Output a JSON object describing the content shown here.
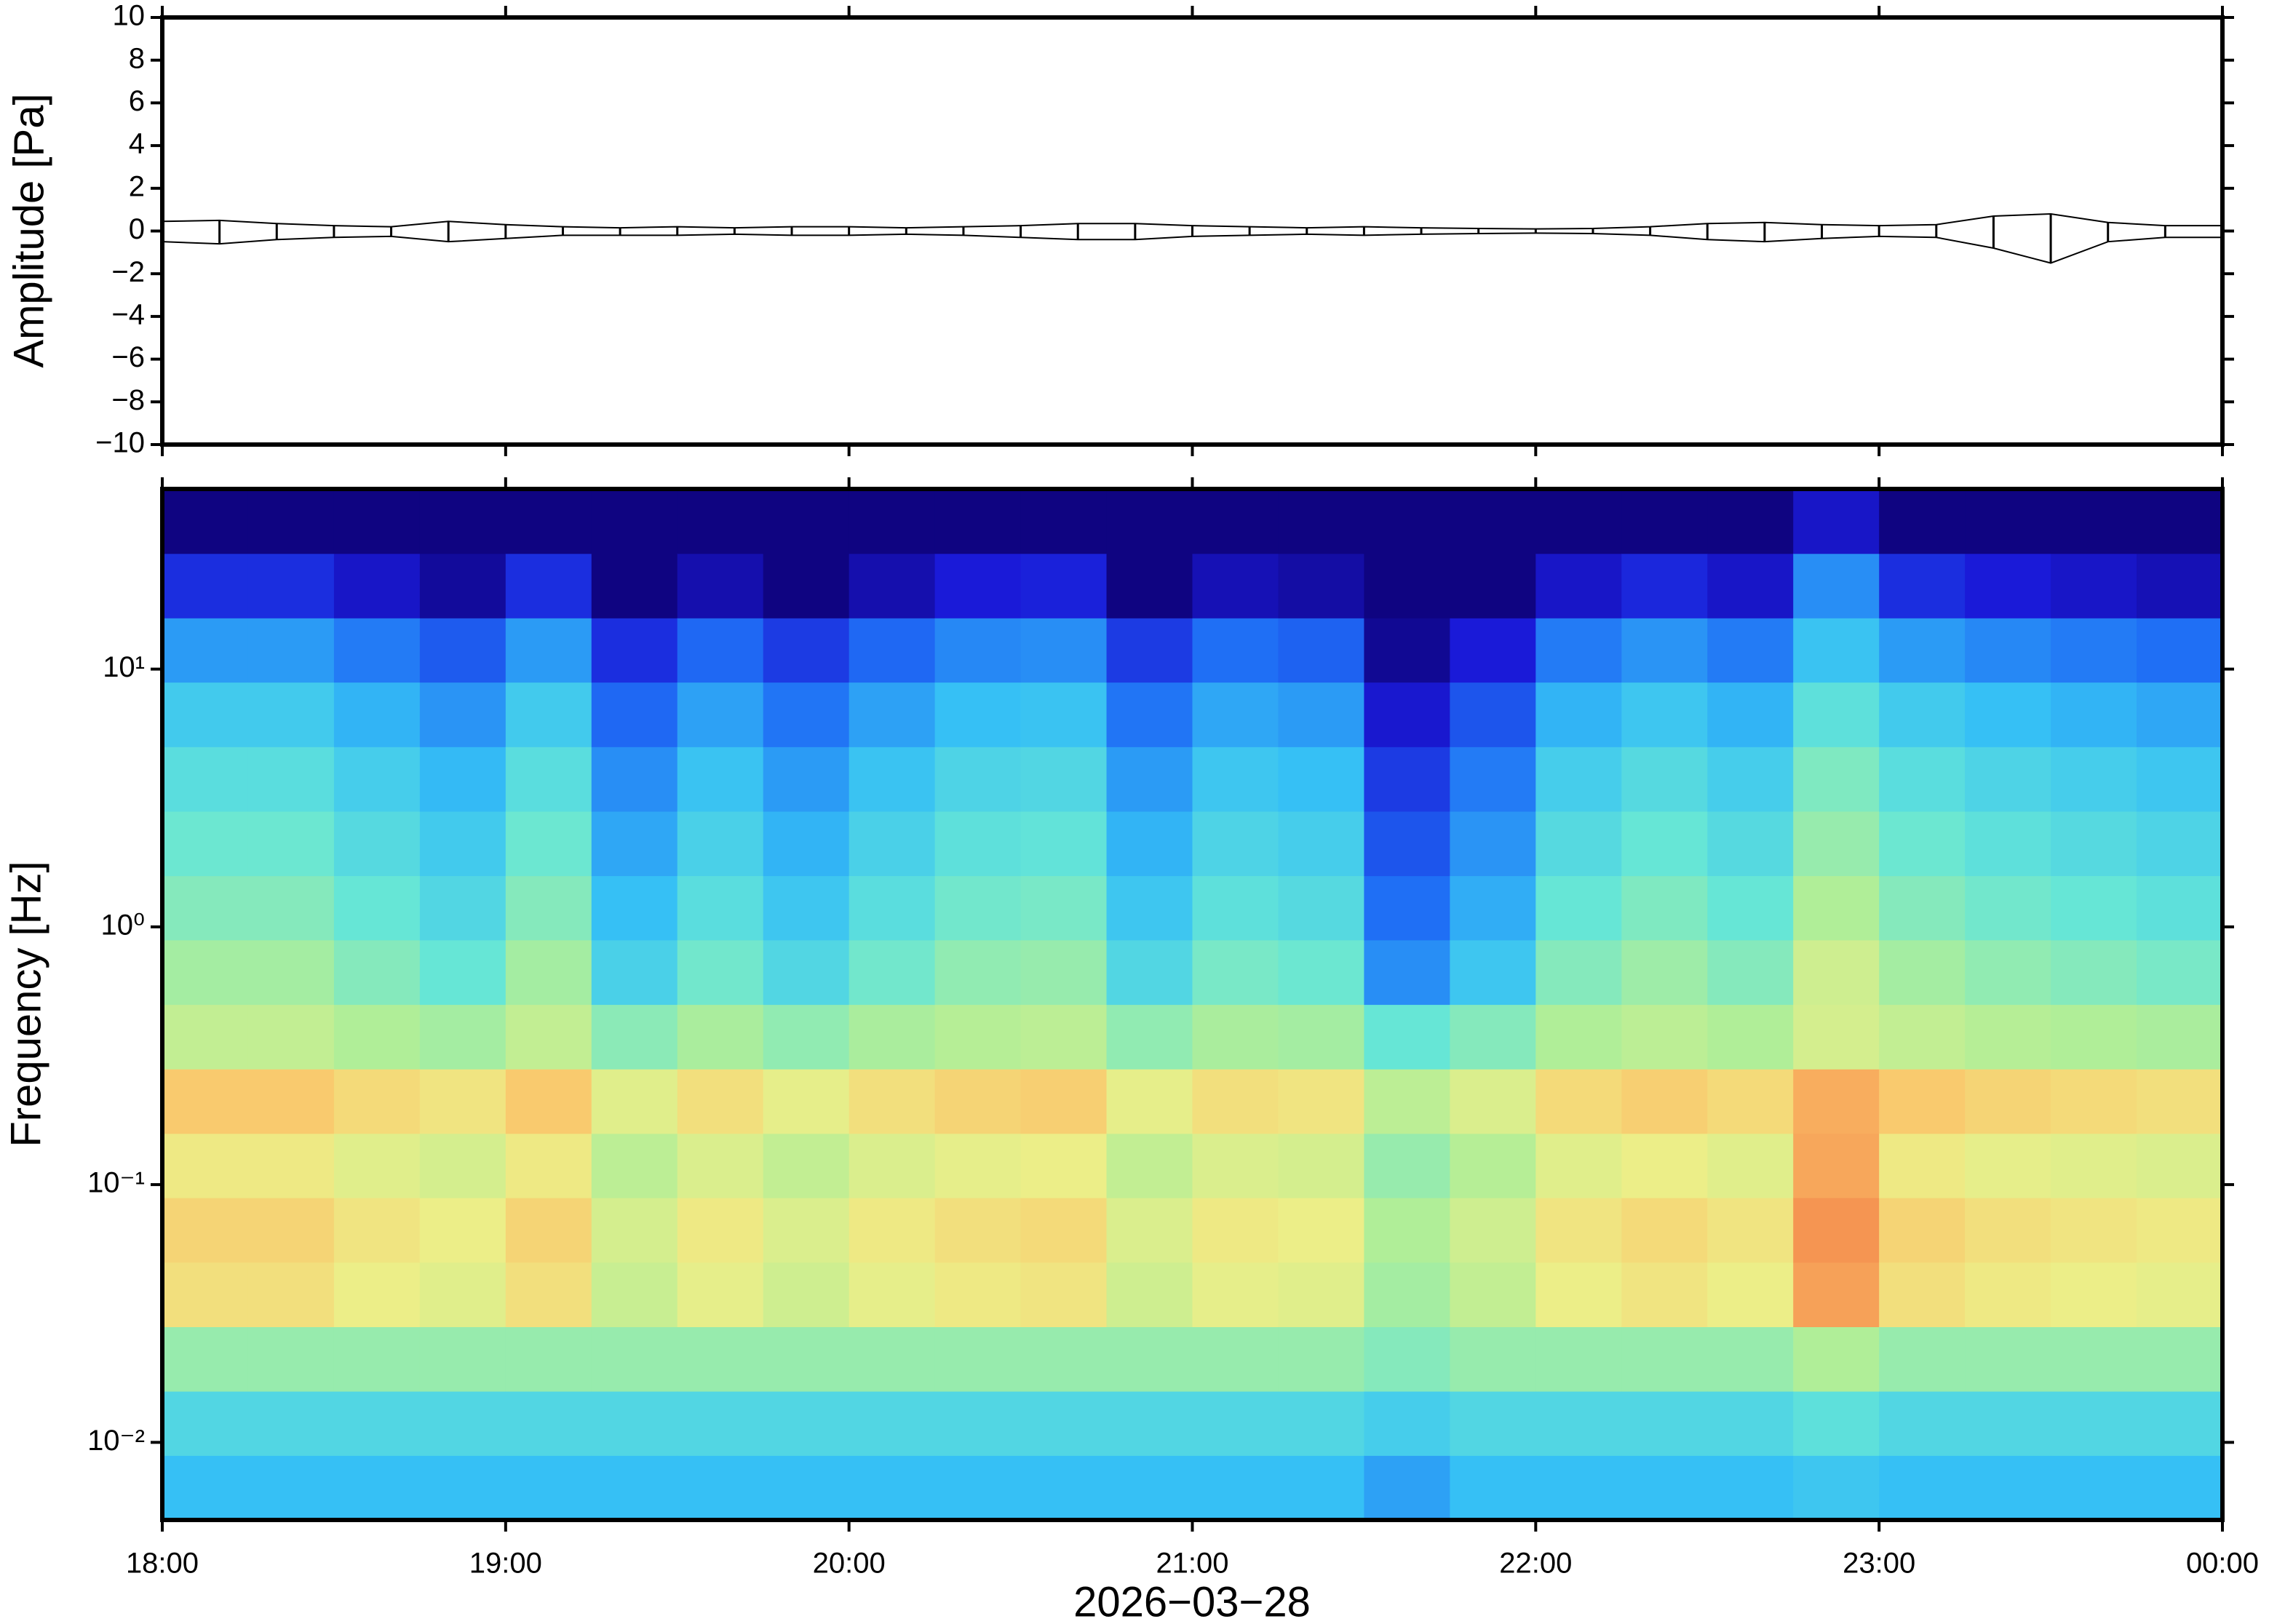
{
  "chart_data": [
    {
      "type": "envelope",
      "ylabel": "Amplitude [Pa]",
      "color": "#000000",
      "xlim": [
        0,
        360
      ],
      "xticks": [
        0,
        60,
        120,
        180,
        240,
        300,
        360
      ],
      "ylim": [
        -10,
        10
      ],
      "yticks": [
        {
          "value": -10,
          "label": "−10"
        },
        {
          "value": -8,
          "label": "−8"
        },
        {
          "value": -6,
          "label": "−6"
        },
        {
          "value": -4,
          "label": "−4"
        },
        {
          "value": -2,
          "label": "−2"
        },
        0,
        2,
        4,
        6,
        8,
        10
      ],
      "x": [
        0,
        10,
        20,
        30,
        40,
        50,
        60,
        70,
        80,
        90,
        100,
        110,
        120,
        130,
        140,
        150,
        160,
        170,
        180,
        190,
        200,
        210,
        220,
        230,
        240,
        250,
        260,
        270,
        280,
        290,
        300,
        310,
        320,
        330,
        340,
        350,
        360
      ],
      "upper": [
        0.45,
        0.5,
        0.35,
        0.25,
        0.2,
        0.45,
        0.3,
        0.2,
        0.15,
        0.2,
        0.15,
        0.2,
        0.2,
        0.15,
        0.2,
        0.25,
        0.35,
        0.35,
        0.25,
        0.2,
        0.15,
        0.2,
        0.15,
        0.12,
        0.1,
        0.12,
        0.2,
        0.35,
        0.4,
        0.3,
        0.25,
        0.3,
        0.7,
        0.8,
        0.4,
        0.25,
        0.25
      ],
      "lower": [
        -0.5,
        -0.6,
        -0.4,
        -0.3,
        -0.25,
        -0.5,
        -0.35,
        -0.2,
        -0.2,
        -0.2,
        -0.15,
        -0.2,
        -0.2,
        -0.15,
        -0.2,
        -0.3,
        -0.4,
        -0.4,
        -0.25,
        -0.2,
        -0.15,
        -0.2,
        -0.15,
        -0.12,
        -0.1,
        -0.12,
        -0.2,
        -0.4,
        -0.5,
        -0.35,
        -0.25,
        -0.3,
        -0.8,
        -1.5,
        -0.5,
        -0.3,
        -0.3
      ]
    },
    {
      "type": "heatmap",
      "ylabel": "Frequency [Hz]",
      "xlabel": "2026−03−28",
      "log_y": true,
      "xlim": [
        0,
        360
      ],
      "xticks": [
        {
          "value": 0,
          "label": "18:00"
        },
        {
          "value": 60,
          "label": "19:00"
        },
        {
          "value": 120,
          "label": "20:00"
        },
        {
          "value": 180,
          "label": "21:00"
        },
        {
          "value": 240,
          "label": "22:00"
        },
        {
          "value": 300,
          "label": "23:00"
        },
        {
          "value": 360,
          "label": "00:00"
        }
      ],
      "ylim": [
        0.005,
        50
      ],
      "yticks": [
        {
          "value": 0.01,
          "label": "10⁻²"
        },
        {
          "value": 0.1,
          "label": "10⁻¹"
        },
        {
          "value": 1,
          "label": "10⁰"
        },
        {
          "value": 10,
          "label": "10¹"
        }
      ],
      "xbins": [
        0,
        15,
        30,
        45,
        60,
        75,
        90,
        105,
        120,
        135,
        150,
        165,
        180,
        195,
        210,
        225,
        240,
        255,
        270,
        285,
        300,
        315,
        330,
        345,
        360
      ],
      "ybins": [
        0.005,
        0.0089,
        0.0158,
        0.0281,
        0.05,
        0.089,
        0.158,
        0.281,
        0.5,
        0.89,
        1.58,
        2.81,
        5,
        8.9,
        15.8,
        28.1,
        50
      ],
      "colorscale": [
        [
          0,
          "#0d0070"
        ],
        [
          0.12,
          "#1a1ad8"
        ],
        [
          0.25,
          "#1f6ff5"
        ],
        [
          0.38,
          "#36c0f5"
        ],
        [
          0.5,
          "#66e6d6"
        ],
        [
          0.62,
          "#b0ee98"
        ],
        [
          0.72,
          "#ecee88"
        ],
        [
          0.8,
          "#fbc56a"
        ],
        [
          0.9,
          "#f3894c"
        ],
        [
          1,
          "#d9402a"
        ]
      ],
      "z": [
        [
          0.38,
          0.45,
          0.58,
          0.75,
          0.77,
          0.73,
          0.79,
          0.65,
          0.6,
          0.55,
          0.51,
          0.47,
          0.41,
          0.32,
          0.15,
          0.02
        ],
        [
          0.38,
          0.45,
          0.58,
          0.75,
          0.77,
          0.73,
          0.79,
          0.65,
          0.6,
          0.55,
          0.51,
          0.47,
          0.41,
          0.32,
          0.15,
          0.02
        ],
        [
          0.38,
          0.45,
          0.58,
          0.72,
          0.74,
          0.7,
          0.76,
          0.62,
          0.55,
          0.5,
          0.46,
          0.42,
          0.36,
          0.27,
          0.1,
          0.02
        ],
        [
          0.38,
          0.45,
          0.58,
          0.7,
          0.72,
          0.68,
          0.74,
          0.6,
          0.5,
          0.45,
          0.41,
          0.37,
          0.31,
          0.22,
          0.05,
          0.02
        ],
        [
          0.38,
          0.45,
          0.58,
          0.75,
          0.77,
          0.73,
          0.79,
          0.65,
          0.6,
          0.55,
          0.51,
          0.47,
          0.41,
          0.32,
          0.15,
          0.02
        ],
        [
          0.38,
          0.45,
          0.58,
          0.66,
          0.68,
          0.64,
          0.7,
          0.56,
          0.43,
          0.38,
          0.34,
          0.3,
          0.24,
          0.15,
          0.02,
          0.02
        ],
        [
          0.38,
          0.45,
          0.58,
          0.71,
          0.73,
          0.69,
          0.75,
          0.61,
          0.52,
          0.47,
          0.43,
          0.39,
          0.33,
          0.24,
          0.07,
          0.02
        ],
        [
          0.38,
          0.45,
          0.58,
          0.67,
          0.69,
          0.65,
          0.71,
          0.57,
          0.45,
          0.4,
          0.36,
          0.32,
          0.26,
          0.17,
          0.02,
          0.02
        ],
        [
          0.38,
          0.45,
          0.58,
          0.71,
          0.73,
          0.69,
          0.75,
          0.61,
          0.52,
          0.47,
          0.43,
          0.39,
          0.33,
          0.24,
          0.07,
          0.02
        ],
        [
          0.38,
          0.45,
          0.58,
          0.73,
          0.75,
          0.71,
          0.77,
          0.63,
          0.57,
          0.52,
          0.48,
          0.44,
          0.38,
          0.29,
          0.12,
          0.02
        ],
        [
          0.38,
          0.45,
          0.58,
          0.74,
          0.76,
          0.72,
          0.78,
          0.64,
          0.58,
          0.53,
          0.49,
          0.45,
          0.39,
          0.3,
          0.13,
          0.02
        ],
        [
          0.38,
          0.45,
          0.58,
          0.67,
          0.69,
          0.65,
          0.71,
          0.57,
          0.45,
          0.4,
          0.36,
          0.32,
          0.26,
          0.17,
          0.02,
          0.02
        ],
        [
          0.38,
          0.45,
          0.58,
          0.71,
          0.73,
          0.69,
          0.75,
          0.61,
          0.53,
          0.48,
          0.44,
          0.4,
          0.34,
          0.25,
          0.08,
          0.02
        ],
        [
          0.38,
          0.45,
          0.58,
          0.7,
          0.72,
          0.68,
          0.74,
          0.6,
          0.51,
          0.46,
          0.42,
          0.38,
          0.32,
          0.23,
          0.06,
          0.02
        ],
        [
          0.33,
          0.42,
          0.55,
          0.6,
          0.62,
          0.58,
          0.64,
          0.5,
          0.3,
          0.25,
          0.21,
          0.17,
          0.11,
          0.04,
          0.02,
          0.02
        ],
        [
          0.38,
          0.45,
          0.58,
          0.65,
          0.67,
          0.63,
          0.69,
          0.55,
          0.4,
          0.35,
          0.31,
          0.27,
          0.21,
          0.12,
          0.02,
          0.02
        ],
        [
          0.38,
          0.45,
          0.58,
          0.72,
          0.74,
          0.7,
          0.76,
          0.62,
          0.55,
          0.5,
          0.46,
          0.42,
          0.36,
          0.27,
          0.1,
          0.02
        ],
        [
          0.38,
          0.45,
          0.58,
          0.74,
          0.76,
          0.72,
          0.78,
          0.64,
          0.59,
          0.54,
          0.5,
          0.46,
          0.4,
          0.31,
          0.14,
          0.02
        ],
        [
          0.38,
          0.45,
          0.58,
          0.72,
          0.74,
          0.7,
          0.76,
          0.62,
          0.55,
          0.5,
          0.46,
          0.42,
          0.36,
          0.27,
          0.1,
          0.02
        ],
        [
          0.4,
          0.48,
          0.62,
          0.86,
          0.88,
          0.85,
          0.84,
          0.68,
          0.67,
          0.62,
          0.58,
          0.54,
          0.48,
          0.39,
          0.3,
          0.1
        ],
        [
          0.38,
          0.45,
          0.58,
          0.75,
          0.77,
          0.73,
          0.79,
          0.65,
          0.6,
          0.55,
          0.51,
          0.47,
          0.41,
          0.32,
          0.15,
          0.02
        ],
        [
          0.38,
          0.45,
          0.58,
          0.73,
          0.75,
          0.71,
          0.77,
          0.63,
          0.57,
          0.52,
          0.48,
          0.44,
          0.38,
          0.29,
          0.12,
          0.02
        ],
        [
          0.38,
          0.45,
          0.58,
          0.72,
          0.74,
          0.7,
          0.76,
          0.62,
          0.55,
          0.5,
          0.46,
          0.42,
          0.36,
          0.27,
          0.1,
          0.02
        ],
        [
          0.38,
          0.45,
          0.58,
          0.71,
          0.73,
          0.69,
          0.75,
          0.61,
          0.53,
          0.48,
          0.44,
          0.4,
          0.34,
          0.25,
          0.08,
          0.02
        ]
      ]
    }
  ]
}
